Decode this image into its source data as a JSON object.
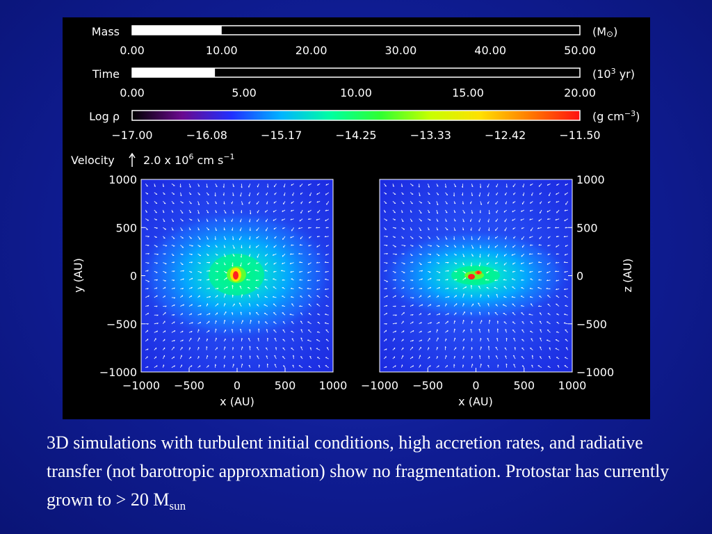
{
  "mass_bar": {
    "label": "Mass",
    "unit_prefix": "(M",
    "unit_symbol": "⊙",
    "unit_suffix": ")",
    "value": 10.0,
    "max": 50.0,
    "ticks": [
      "0.00",
      "10.00",
      "20.00",
      "30.00",
      "40.00",
      "50.00"
    ]
  },
  "time_bar": {
    "label": "Time",
    "unit_prefix": "(10",
    "unit_exp": "3",
    "unit_suffix": " yr)",
    "value": 3.7,
    "max": 20.0,
    "ticks": [
      "0.00",
      "5.00",
      "10.00",
      "15.00",
      "20.00"
    ]
  },
  "density_bar": {
    "label": "Log ρ",
    "unit_prefix": "(g cm",
    "unit_exp": "−3",
    "unit_suffix": ")",
    "ticks": [
      "−17.00",
      "−16.08",
      "−15.17",
      "−14.25",
      "−13.33",
      "−12.42",
      "−11.50"
    ],
    "colors": [
      "#000000",
      "#6a0a8e",
      "#2030ff",
      "#00b4ff",
      "#00ffa0",
      "#30ff30",
      "#c8ff00",
      "#ffe000",
      "#ff7a00",
      "#ff1010"
    ]
  },
  "velocity_key": {
    "label": "Velocity",
    "arrow": "↑",
    "magnitude_prefix": "2.0 x 10",
    "magnitude_exp": "6",
    "unit_prefix": " cm s",
    "unit_exp": "−1"
  },
  "panels": [
    {
      "x_label": "x (AU)",
      "y_label": "y (AU)",
      "x_ticks": [
        "−1000",
        "−500",
        "0",
        "500",
        "1000"
      ],
      "y_ticks": [
        "1000",
        "500",
        "0",
        "−500",
        "−1000"
      ],
      "core_colors": [
        "#ff2020",
        "#ffe000",
        "#60ff30"
      ]
    },
    {
      "x_label": "x (AU)",
      "y_label": "z (AU)",
      "x_ticks": [
        "−1000",
        "−500",
        "0",
        "500",
        "1000"
      ],
      "y_ticks": [
        "1000",
        "500",
        "0",
        "−500",
        "−1000"
      ],
      "core_colors": [
        "#ff2020",
        "#ffe000",
        "#60ff30"
      ]
    }
  ],
  "caption": {
    "text": "3D simulations with turbulent initial conditions, high accretion rates, and radiative transfer (not barotropic approxmation) show no fragmentation. Protostar has currently grown to > 20 M",
    "subscript": "sun"
  }
}
